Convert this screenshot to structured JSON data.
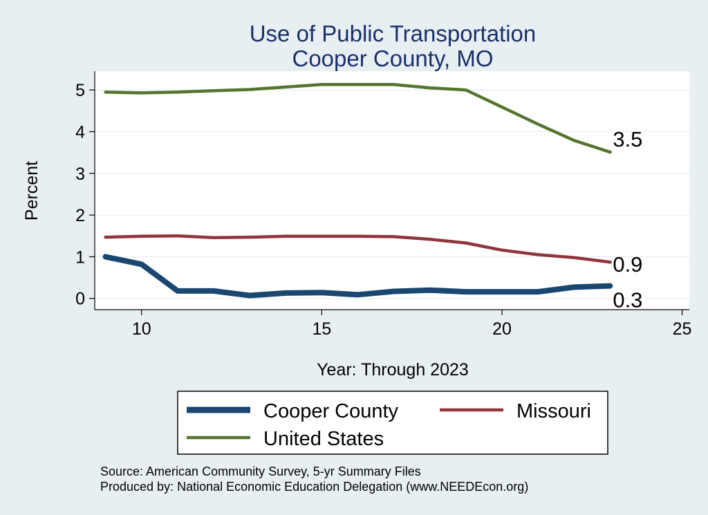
{
  "chart_data": {
    "type": "line",
    "title": [
      "Use of Public Transportation",
      "Cooper County, MO"
    ],
    "xlabel": "Year: Through 2023",
    "ylabel": "Percent",
    "xlim": [
      8.7,
      25.2
    ],
    "ylim": [
      -0.27,
      5.45
    ],
    "x_ticks": [
      10,
      15,
      20,
      25
    ],
    "y_ticks": [
      0,
      1,
      2,
      3,
      4,
      5
    ],
    "grid": "horizontal",
    "x": [
      9,
      10,
      11,
      12,
      13,
      14,
      15,
      16,
      17,
      18,
      19,
      20,
      21,
      22,
      23
    ],
    "series": [
      {
        "name": "Cooper County",
        "color": "#1a476f",
        "end_label": "0.3",
        "values": [
          1.0,
          0.82,
          0.18,
          0.18,
          0.07,
          0.13,
          0.14,
          0.09,
          0.17,
          0.2,
          0.16,
          0.16,
          0.16,
          0.27,
          0.3
        ]
      },
      {
        "name": "Missouri",
        "color": "#90353b",
        "end_label": "0.9",
        "values": [
          1.47,
          1.49,
          1.5,
          1.46,
          1.47,
          1.49,
          1.49,
          1.49,
          1.48,
          1.42,
          1.33,
          1.16,
          1.05,
          0.98,
          0.87
        ]
      },
      {
        "name": "United States",
        "color": "#55752f",
        "end_label": "3.5",
        "values": [
          4.95,
          4.93,
          4.95,
          4.98,
          5.01,
          5.07,
          5.13,
          5.13,
          5.13,
          5.05,
          5.0,
          4.59,
          4.18,
          3.79,
          3.51
        ]
      }
    ],
    "legend": {
      "position": "bottom",
      "items": [
        "Cooper County",
        "Missouri",
        "United States"
      ]
    },
    "notes": [
      "Source: American Community Survey, 5-yr Summary Files",
      "Produced by: National Economic Education Delegation (www.NEEDEcon.org)"
    ]
  }
}
